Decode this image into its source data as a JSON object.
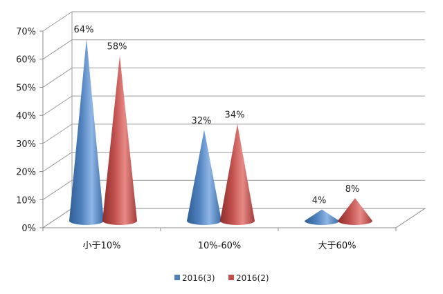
{
  "chart_data": {
    "type": "bar",
    "subtype": "3d-cone",
    "categories": [
      "小于10%",
      "10%-60%",
      "大于60%"
    ],
    "series": [
      {
        "name": "2016(3)",
        "values": [
          64,
          32,
          4
        ],
        "labels": [
          "64%",
          "32%",
          "4%"
        ],
        "color": "#4f81bd"
      },
      {
        "name": "2016(2)",
        "values": [
          58,
          34,
          8
        ],
        "labels": [
          "58%",
          "34%",
          "8%"
        ],
        "color": "#c0504d"
      }
    ],
    "y_ticks": [
      "0%",
      "10%",
      "20%",
      "30%",
      "40%",
      "50%",
      "60%",
      "70%"
    ],
    "ylim": [
      0,
      70
    ],
    "grid": true,
    "legend_position": "bottom"
  }
}
